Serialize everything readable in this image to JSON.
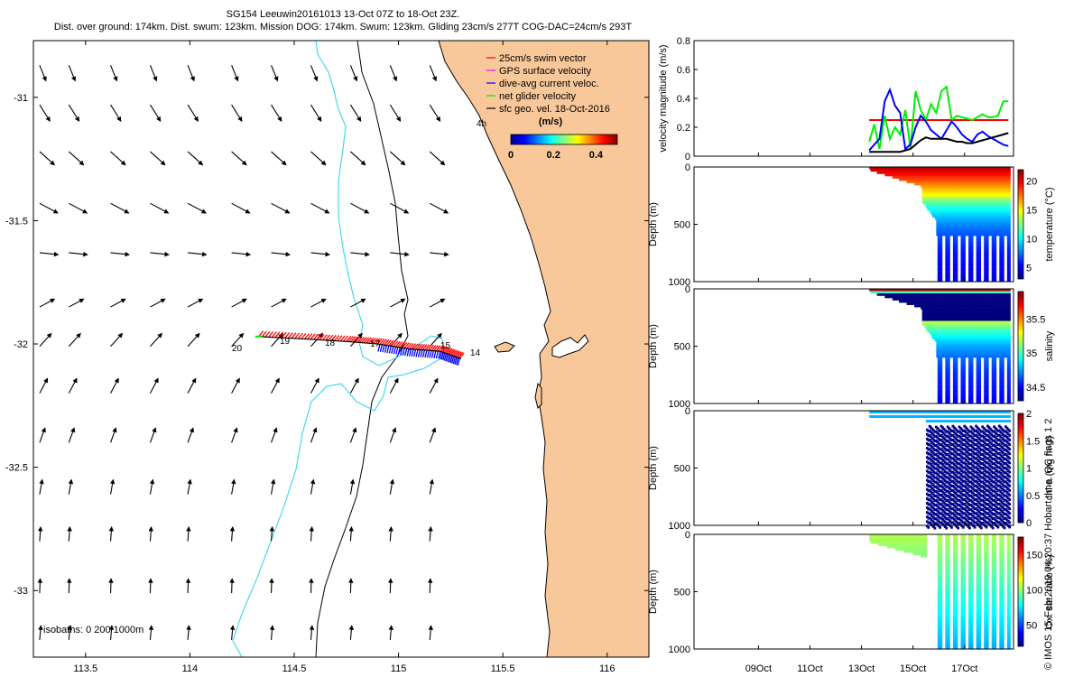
{
  "header": {
    "title_line1": "SG154 Leeuwin20161013 13-Oct 07Z to 18-Oct 23Z.",
    "title_line2": "Dist. over ground: 174km. Dist. swum: 123km. Mission DOG: 174km. Swum: 123km. Gliding 23cm/s 277T COG-DAC=24cm/s 293T"
  },
  "credit": "© IMOS 15-Feb-2019 04:20:37 Hobart time. QC flags 1  2",
  "colors": {
    "land": "#f9c89a",
    "isobath_0": "#000000",
    "isobath_200": "#000000",
    "isobath_1000": "#25d3e6",
    "swim_vector": "#ff0000",
    "gps_surface": "#ff00ff",
    "dac": "#0000ff",
    "net_glider": "#00ee00",
    "sfc_geo": "#000000"
  },
  "chart_data": [
    {
      "id": "map",
      "type": "scatter",
      "title": "",
      "xlabel": "",
      "ylabel": "",
      "xlim": [
        113.25,
        116.2
      ],
      "ylim": [
        -33.27,
        -30.77
      ],
      "xticks": [
        113.5,
        114,
        114.5,
        115,
        115.5,
        116
      ],
      "xtick_labels": [
        "113.5",
        "114",
        "114.5",
        "115",
        "115.5",
        "116"
      ],
      "yticks": [
        -31,
        -31.5,
        -32,
        -32.5,
        -33
      ],
      "ytick_labels": [
        "-31",
        "-31.5",
        "-32",
        "-32.5",
        "-33"
      ],
      "legend": [
        {
          "label": "25cm/s swim vector",
          "color": "#ff0000"
        },
        {
          "label": "GPS surface velocity",
          "color": "#ff00ff"
        },
        {
          "label": "dive-avg current veloc.",
          "color": "#0000ff"
        },
        {
          "label": "net glider velocity",
          "color": "#00ee00"
        },
        {
          "label": "sfc geo. vel. 18-Oct-2016",
          "color": "#000000"
        }
      ],
      "legend_position": "top-right",
      "colorbar": {
        "label": "(m/s)",
        "ticks": [
          0,
          0.2,
          0.4
        ],
        "tick_labels": [
          "0",
          "0.2",
          "0.4"
        ],
        "range": [
          0,
          0.5
        ]
      },
      "annotations": [
        "4h",
        "20",
        "19",
        "18",
        "17",
        "15",
        "14"
      ],
      "isobath_note": "isobaths: 0   200  1000m",
      "track": [
        {
          "lon": 114.33,
          "lat": -31.97
        },
        {
          "lon": 114.55,
          "lat": -31.98
        },
        {
          "lon": 114.75,
          "lat": -31.99
        },
        {
          "lon": 114.9,
          "lat": -32.0
        },
        {
          "lon": 115.05,
          "lat": -32.02
        },
        {
          "lon": 115.2,
          "lat": -32.03
        },
        {
          "lon": 115.3,
          "lat": -32.06
        }
      ],
      "current_vectors": {
        "rows": [
          {
            "lat": -30.87,
            "angle_deg": 22,
            "speed": 0.12
          },
          {
            "lat": -31.03,
            "angle_deg": 32,
            "speed": 0.16
          },
          {
            "lat": -31.22,
            "angle_deg": 48,
            "speed": 0.17
          },
          {
            "lat": -31.43,
            "angle_deg": 62,
            "speed": 0.18
          },
          {
            "lat": -31.63,
            "angle_deg": 84,
            "speed": 0.15
          },
          {
            "lat": -31.85,
            "angle_deg": 118,
            "speed": 0.12
          },
          {
            "lat": -32.01,
            "angle_deg": 138,
            "speed": 0.13
          },
          {
            "lat": -32.2,
            "angle_deg": 152,
            "speed": 0.12
          },
          {
            "lat": -32.4,
            "angle_deg": 160,
            "speed": 0.1
          },
          {
            "lat": -32.61,
            "angle_deg": 170,
            "speed": 0.09
          },
          {
            "lat": -32.8,
            "angle_deg": 176,
            "speed": 0.08
          },
          {
            "lat": -33.01,
            "angle_deg": 178,
            "speed": 0.08
          },
          {
            "lat": -33.2,
            "angle_deg": 175,
            "speed": 0.08
          }
        ],
        "lons": [
          113.28,
          113.42,
          113.62,
          113.81,
          113.99,
          114.2,
          114.39,
          114.58,
          114.77,
          114.96,
          115.15
        ]
      }
    },
    {
      "id": "velocity",
      "type": "line",
      "ylabel": "velocity magnitude (m/s)",
      "ylim": [
        0,
        0.8
      ],
      "yticks": [
        0,
        0.2,
        0.4,
        0.6,
        0.8
      ],
      "ytick_labels": [
        "0",
        "0.2",
        "0.4",
        "0.6",
        "0.8"
      ],
      "x_days": [
        13.3,
        13.5,
        13.7,
        13.9,
        14.1,
        14.3,
        14.5,
        14.7,
        14.9,
        15.1,
        15.3,
        15.5,
        15.7,
        15.9,
        16.1,
        16.3,
        16.5,
        16.7,
        16.9,
        17.1,
        17.3,
        17.5,
        17.7,
        17.9,
        18.1,
        18.3,
        18.5,
        18.7
      ],
      "series": [
        {
          "name": "swim vector",
          "color": "#ff0000",
          "values": [
            0.25,
            0.25,
            0.25,
            0.25,
            0.25,
            0.25,
            0.25,
            0.25,
            0.25,
            0.25,
            0.25,
            0.25,
            0.25,
            0.25,
            0.25,
            0.25,
            0.25,
            0.25,
            0.25,
            0.25,
            0.25,
            0.25,
            0.25,
            0.25,
            0.25,
            0.25,
            0.25,
            0.25
          ]
        },
        {
          "name": "net glider",
          "color": "#00ee00",
          "values": [
            0.1,
            0.22,
            0.05,
            0.28,
            0.12,
            0.2,
            0.15,
            0.32,
            0.05,
            0.45,
            0.32,
            0.25,
            0.36,
            0.3,
            0.45,
            0.48,
            0.25,
            0.28,
            0.27,
            0.26,
            0.25,
            0.27,
            0.29,
            0.27,
            0.27,
            0.28,
            0.38,
            0.38
          ]
        },
        {
          "name": "dac",
          "color": "#0000ff",
          "values": [
            0.04,
            0.08,
            0.12,
            0.38,
            0.46,
            0.35,
            0.3,
            0.05,
            0.08,
            0.2,
            0.28,
            0.24,
            0.18,
            0.15,
            0.12,
            0.18,
            0.24,
            0.2,
            0.15,
            0.12,
            0.1,
            0.15,
            0.17,
            0.14,
            0.12,
            0.1,
            0.08,
            0.07
          ]
        },
        {
          "name": "sfc geo",
          "color": "#000000",
          "values": [
            0.03,
            0.03,
            0.03,
            0.03,
            0.03,
            0.03,
            0.03,
            0.04,
            0.05,
            0.08,
            0.11,
            0.13,
            0.12,
            0.12,
            0.12,
            0.12,
            0.11,
            0.1,
            0.1,
            0.09,
            0.09,
            0.1,
            0.11,
            0.12,
            0.13,
            0.14,
            0.15,
            0.16
          ]
        }
      ]
    },
    {
      "id": "temperature",
      "type": "heatmap",
      "ylabel": "Depth (m)",
      "cblabel": "temperature (°C)",
      "ylim": [
        1000,
        0
      ],
      "yticks": [
        0,
        500,
        1000
      ],
      "ytick_labels": [
        "0",
        "500",
        "1000"
      ],
      "clim": [
        3,
        22
      ],
      "cbticks": [
        5,
        10,
        15,
        20
      ],
      "cbtick_labels": [
        "5",
        "10",
        "15",
        "20"
      ],
      "surface": 21,
      "thermocline_depth": 250,
      "deep": 4.5
    },
    {
      "id": "salinity",
      "type": "heatmap",
      "ylabel": "Depth (m)",
      "cblabel": "salinity",
      "ylim": [
        1000,
        0
      ],
      "yticks": [
        0,
        500,
        1000
      ],
      "ytick_labels": [
        "0",
        "500",
        "1000"
      ],
      "clim": [
        34.3,
        35.9
      ],
      "cbticks": [
        34.5,
        35,
        35.5
      ],
      "cbtick_labels": [
        "34.5",
        "35",
        "35.5"
      ],
      "surface": 35.8,
      "thermocline_depth": 280,
      "deep": 34.45
    },
    {
      "id": "chla",
      "type": "heatmap",
      "ylabel": "Depth (m)",
      "cblabel": "chl-a (mg m-3)",
      "ylim": [
        1000,
        0
      ],
      "yticks": [
        0,
        500,
        1000
      ],
      "ytick_labels": [
        "0",
        "500",
        "1000"
      ],
      "clim": [
        0,
        2
      ],
      "cbticks": [
        0,
        0.5,
        1,
        1.5,
        2
      ],
      "cbtick_labels": [
        "0",
        "0.5",
        "1",
        "1.5",
        "2"
      ],
      "surface": 0.6,
      "deep": 0.02
    },
    {
      "id": "oxygen",
      "type": "heatmap",
      "ylabel": "Depth (m)",
      "cblabel": "Ox. sat. ratio (%)",
      "ylim": [
        1000,
        0
      ],
      "yticks": [
        0,
        500,
        1000
      ],
      "ytick_labels": [
        "0",
        "500",
        "1000"
      ],
      "clim": [
        20,
        175
      ],
      "cbticks": [
        50,
        100,
        150
      ],
      "cbtick_labels": [
        "50",
        "100",
        "150"
      ],
      "surface": 105,
      "deep": 65
    }
  ],
  "time_axis": {
    "xlim": [
      6.5,
      18.9
    ],
    "ticks": [
      9,
      11,
      13,
      15,
      17
    ],
    "tick_labels": [
      "09Oct",
      "11Oct",
      "13Oct",
      "15Oct",
      "17Oct"
    ],
    "profile_days": [
      16.0,
      16.3,
      16.6,
      16.9,
      17.2,
      17.5,
      17.8,
      18.1,
      18.4,
      18.7
    ],
    "shallow_start": 13.3,
    "deep_start": 15.35
  }
}
